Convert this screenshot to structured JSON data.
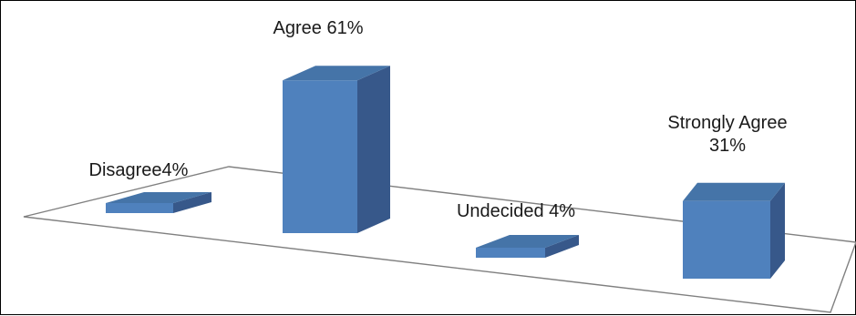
{
  "chart_data": {
    "type": "bar",
    "style": "3d-perspective",
    "categories": [
      "Disagree",
      "Agree",
      "Undecided",
      "Strongly Agree"
    ],
    "values": [
      4,
      61,
      4,
      31
    ],
    "unit": "%",
    "data_labels": [
      [
        "Disagree4%"
      ],
      [
        "Agree 61%"
      ],
      [
        "Undecided 4%"
      ],
      [
        "Strongly Agree",
        "31%"
      ]
    ],
    "title": "",
    "xlabel": "",
    "ylabel": "",
    "legend": "none",
    "grid": false,
    "colors": {
      "bar_front": "#4f81bd",
      "bar_top": "#4574a8",
      "bar_side": "#37588a",
      "floor_edge": "#808080"
    }
  }
}
